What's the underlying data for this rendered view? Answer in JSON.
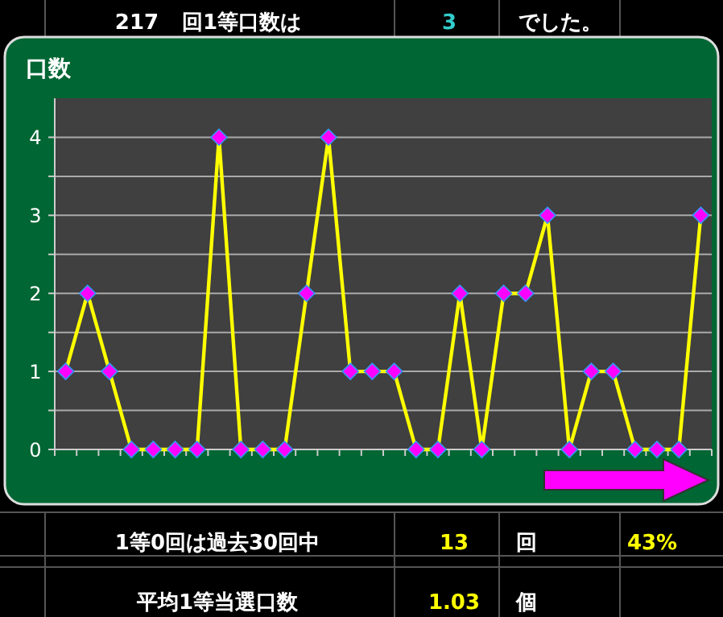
{
  "chart_data": {
    "type": "line",
    "ylabel": "口数",
    "categories": [
      null,
      null,
      null,
      null,
      null,
      null,
      null,
      null,
      null,
      null,
      null,
      null,
      null,
      null,
      null,
      null,
      null,
      null,
      null,
      null,
      null,
      null,
      null,
      null,
      null,
      null,
      null,
      null,
      null,
      null
    ],
    "series": [
      {
        "color": "#ffff00",
        "values": [
          1,
          2,
          1,
          0,
          0,
          0,
          0,
          4,
          0,
          0,
          0,
          2,
          4,
          1,
          1,
          1,
          0,
          0,
          2,
          0,
          2,
          2,
          3,
          0,
          1,
          1,
          0,
          0,
          0,
          3
        ]
      }
    ],
    "ylim": [
      0,
      4.5
    ],
    "yticks": [
      0,
      {
        "value": 0.5,
        "label": null
      },
      1,
      {
        "value": 1.5,
        "label": null
      },
      2,
      {
        "value": 2.5,
        "label": null
      },
      3,
      {
        "value": 3.5,
        "label": null
      },
      4
    ],
    "grid": "y",
    "marker": "diamond",
    "line_style": "solid",
    "annotations": [
      "217",
      "回1等口数は",
      "3",
      "でした。",
      "1等0回は過去30回中",
      "13",
      "回",
      "43%",
      "平均1等当選口数",
      "1.03",
      "個"
    ]
  }
}
